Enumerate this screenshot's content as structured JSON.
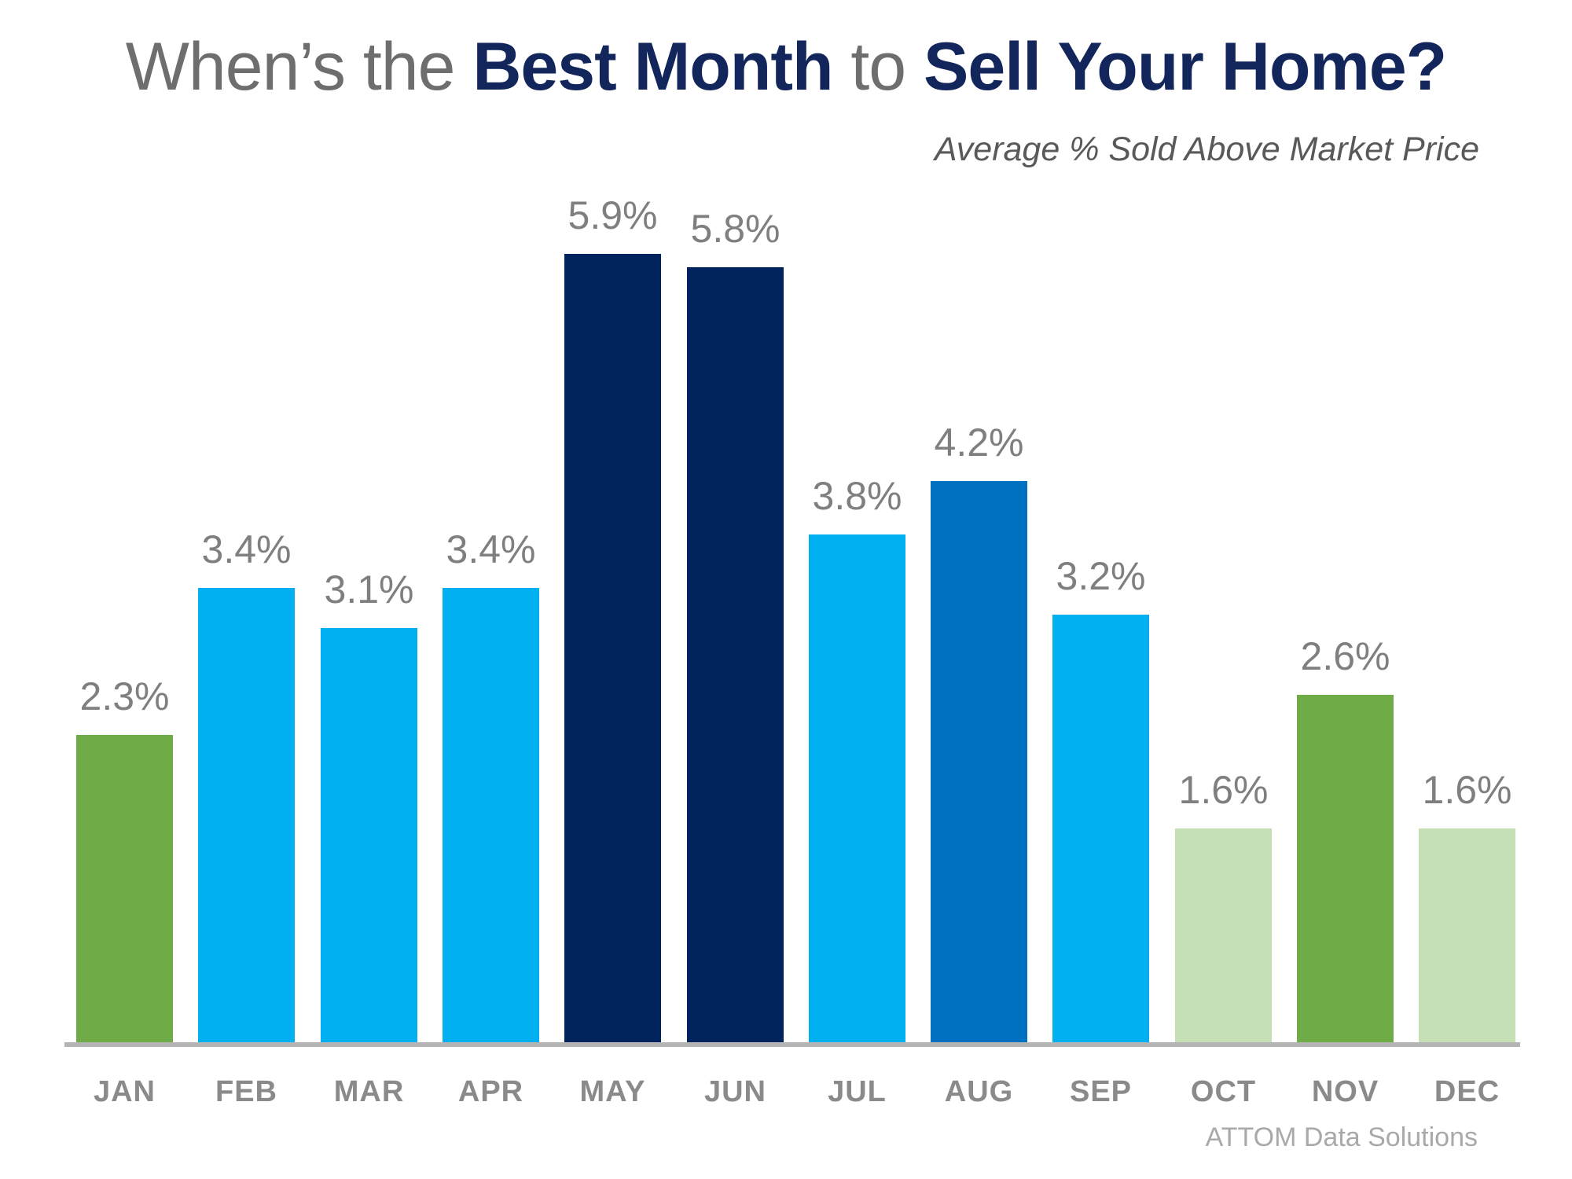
{
  "title": {
    "part1": "When’s the ",
    "part2": "Best Month",
    "part3": " to ",
    "part4": "Sell Your Home?"
  },
  "subtitle": "Average % Sold Above Market Price",
  "source": "ATTOM Data Solutions",
  "palette": {
    "title_gray": "#6e6e6e",
    "title_navy": "#13265c",
    "label_gray": "#7f7f7f",
    "month_gray": "#8a8a8a",
    "axis_gray": "#b5b5b5",
    "navy": "#00235e",
    "light_blue": "#00b0f0",
    "medium_blue": "#0070c0",
    "green": "#6fac47",
    "pale_green": "#c5e0b4"
  },
  "chart_data": {
    "type": "bar",
    "title": "When’s the Best Month to Sell Your Home?",
    "subtitle": "Average % Sold Above Market Price",
    "xlabel": "",
    "ylabel": "Average % Sold Above Market Price",
    "categories": [
      "JAN",
      "FEB",
      "MAR",
      "APR",
      "MAY",
      "JUN",
      "JUL",
      "AUG",
      "SEP",
      "OCT",
      "NOV",
      "DEC"
    ],
    "values": [
      2.3,
      3.4,
      3.1,
      3.4,
      5.9,
      5.8,
      3.8,
      4.2,
      3.2,
      1.6,
      2.6,
      1.6
    ],
    "value_labels": [
      "2.3%",
      "3.4%",
      "3.1%",
      "3.4%",
      "5.9%",
      "5.8%",
      "3.8%",
      "4.2%",
      "3.2%",
      "1.6%",
      "2.6%",
      "1.6%"
    ],
    "bar_colors": [
      "#6fac47",
      "#00b0f0",
      "#00b0f0",
      "#00b0f0",
      "#00235e",
      "#00235e",
      "#00b0f0",
      "#0070c0",
      "#00b0f0",
      "#c5e0b4",
      "#6fac47",
      "#c5e0b4"
    ],
    "ylim": [
      0,
      6.5
    ],
    "grid": false,
    "legend": false,
    "data_labels": true,
    "source": "ATTOM Data Solutions"
  }
}
